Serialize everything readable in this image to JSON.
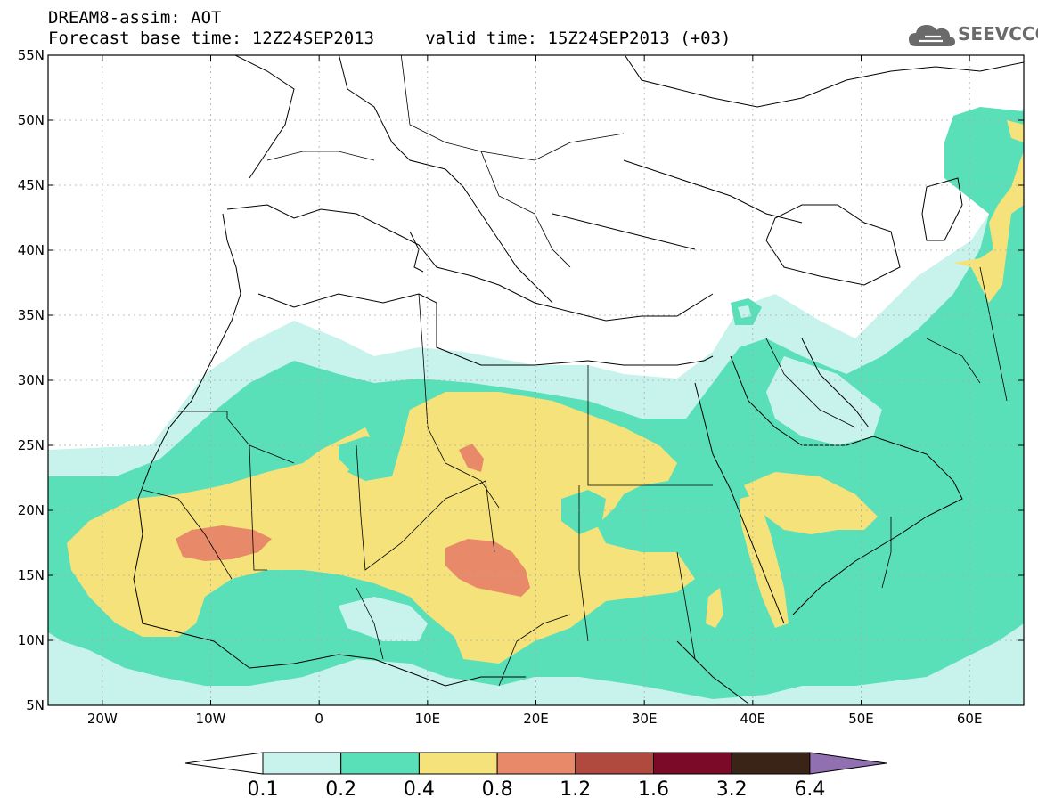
{
  "title": {
    "line1": "DREAM8-assim: AOT",
    "line2": "Forecast base time: 12Z24SEP2013     valid time: 15Z24SEP2013 (+03)"
  },
  "logo": {
    "text": "SEEVCCC",
    "icon": "cloud-icon"
  },
  "map": {
    "lat_labels": [
      "55N",
      "50N",
      "45N",
      "40N",
      "35N",
      "30N",
      "25N",
      "20N",
      "15N",
      "10N",
      "5N"
    ],
    "lon_labels": [
      "20W",
      "10W",
      "0",
      "10E",
      "20E",
      "30E",
      "40E",
      "50E",
      "60E"
    ],
    "extent": {
      "lon": [
        -25,
        65
      ],
      "lat": [
        5,
        55
      ]
    },
    "field": "AOT"
  },
  "colorbar": {
    "labels": [
      "0.1",
      "0.2",
      "0.4",
      "0.8",
      "1.2",
      "1.6",
      "3.2",
      "6.4"
    ],
    "colors": [
      "#c8f3ec",
      "#5ae0b8",
      "#f5e27a",
      "#e8896a",
      "#b04a3e",
      "#7a0a28",
      "#3a2418",
      "#9070b0"
    ]
  }
}
